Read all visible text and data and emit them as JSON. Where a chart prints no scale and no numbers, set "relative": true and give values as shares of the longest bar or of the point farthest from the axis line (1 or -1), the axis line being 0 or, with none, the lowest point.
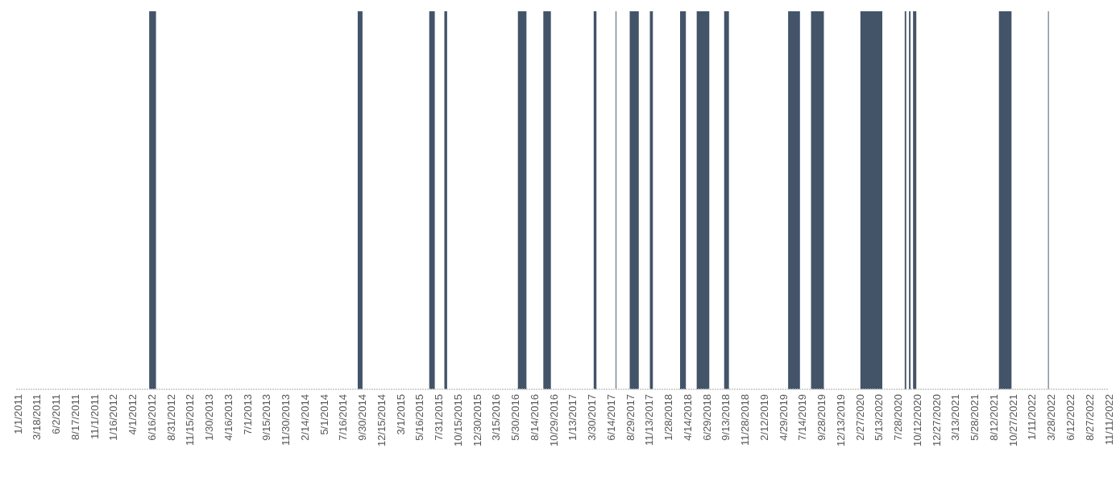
{
  "chart_data": {
    "type": "area",
    "relative": true,
    "color": "#435469",
    "grid": false,
    "x": [
      "2011-01-01",
      "2012-06-06",
      "2012-07-03",
      "2014-09-12",
      "2014-10-01",
      "2015-06-23",
      "2015-07-15",
      "2015-08-22",
      "2015-09-02",
      "2016-06-09",
      "2016-07-13",
      "2016-09-18",
      "2016-10-18",
      "2017-04-06",
      "2017-04-17",
      "2017-07-02",
      "2017-07-05",
      "2017-08-27",
      "2017-10-02",
      "2017-11-15",
      "2017-11-27",
      "2018-03-15",
      "2018-04-07",
      "2018-05-20",
      "2018-07-09",
      "2018-09-06",
      "2018-09-25",
      "2019-05-18",
      "2019-07-04",
      "2019-08-17",
      "2019-10-07",
      "2020-02-29",
      "2020-05-26",
      "2020-08-23",
      "2020-08-29",
      "2020-09-09",
      "2020-09-15",
      "2020-09-25",
      "2020-10-08",
      "2021-09-01",
      "2021-10-21",
      "2022-03-15",
      "2022-03-18"
    ],
    "values": [
      0,
      1,
      0,
      1,
      0,
      1,
      0,
      1,
      0,
      1,
      0,
      1,
      0,
      1,
      0,
      1,
      0,
      1,
      0,
      1,
      0,
      1,
      0,
      1,
      0,
      1,
      0,
      1,
      0,
      1,
      0,
      1,
      0,
      1,
      0,
      1,
      0,
      1,
      0,
      1,
      0,
      1,
      0
    ],
    "xlim": [
      "2011-01-01",
      "2022-11-11"
    ],
    "xticks": [
      {
        "value": "2011-01-01",
        "label": "1/1/2011"
      },
      {
        "value": "2011-03-18",
        "label": "3/18/2011"
      },
      {
        "value": "2011-06-02",
        "label": "6/2/2011"
      },
      {
        "value": "2011-08-17",
        "label": "8/17/2011"
      },
      {
        "value": "2011-11-01",
        "label": "11/1/2011"
      },
      {
        "value": "2012-01-16",
        "label": "1/16/2012"
      },
      {
        "value": "2012-04-01",
        "label": "4/1/2012"
      },
      {
        "value": "2012-06-16",
        "label": "6/16/2012"
      },
      {
        "value": "2012-08-31",
        "label": "8/31/2012"
      },
      {
        "value": "2012-11-15",
        "label": "11/15/2012"
      },
      {
        "value": "2013-01-30",
        "label": "1/30/2013"
      },
      {
        "value": "2013-04-16",
        "label": "4/16/2013"
      },
      {
        "value": "2013-07-01",
        "label": "7/1/2013"
      },
      {
        "value": "2013-09-15",
        "label": "9/15/2013"
      },
      {
        "value": "2013-11-30",
        "label": "11/30/2013"
      },
      {
        "value": "2014-02-14",
        "label": "2/14/2014"
      },
      {
        "value": "2014-05-01",
        "label": "5/1/2014"
      },
      {
        "value": "2014-07-16",
        "label": "7/16/2014"
      },
      {
        "value": "2014-09-30",
        "label": "9/30/2014"
      },
      {
        "value": "2014-12-15",
        "label": "12/15/2014"
      },
      {
        "value": "2015-03-01",
        "label": "3/1/2015"
      },
      {
        "value": "2015-05-16",
        "label": "5/16/2015"
      },
      {
        "value": "2015-07-31",
        "label": "7/31/2015"
      },
      {
        "value": "2015-10-15",
        "label": "10/15/2015"
      },
      {
        "value": "2015-12-30",
        "label": "12/30/2015"
      },
      {
        "value": "2016-03-15",
        "label": "3/15/2016"
      },
      {
        "value": "2016-05-30",
        "label": "5/30/2016"
      },
      {
        "value": "2016-08-14",
        "label": "8/14/2016"
      },
      {
        "value": "2016-10-29",
        "label": "10/29/2016"
      },
      {
        "value": "2017-01-13",
        "label": "1/13/2017"
      },
      {
        "value": "2017-03-30",
        "label": "3/30/2017"
      },
      {
        "value": "2017-06-14",
        "label": "6/14/2017"
      },
      {
        "value": "2017-08-29",
        "label": "8/29/2017"
      },
      {
        "value": "2017-11-13",
        "label": "11/13/2017"
      },
      {
        "value": "2018-01-28",
        "label": "1/28/2018"
      },
      {
        "value": "2018-04-14",
        "label": "4/14/2018"
      },
      {
        "value": "2018-06-29",
        "label": "6/29/2018"
      },
      {
        "value": "2018-09-13",
        "label": "9/13/2018"
      },
      {
        "value": "2018-11-28",
        "label": "11/28/2018"
      },
      {
        "value": "2019-02-12",
        "label": "2/12/2019"
      },
      {
        "value": "2019-04-29",
        "label": "4/29/2019"
      },
      {
        "value": "2019-07-14",
        "label": "7/14/2019"
      },
      {
        "value": "2019-09-28",
        "label": "9/28/2019"
      },
      {
        "value": "2019-12-13",
        "label": "12/13/2019"
      },
      {
        "value": "2020-02-27",
        "label": "2/27/2020"
      },
      {
        "value": "2020-05-13",
        "label": "5/13/2020"
      },
      {
        "value": "2020-07-28",
        "label": "7/28/2020"
      },
      {
        "value": "2020-10-12",
        "label": "10/12/2020"
      },
      {
        "value": "2020-12-27",
        "label": "12/27/2020"
      },
      {
        "value": "2021-03-13",
        "label": "3/13/2021"
      },
      {
        "value": "2021-05-28",
        "label": "5/28/2021"
      },
      {
        "value": "2021-08-12",
        "label": "8/12/2021"
      },
      {
        "value": "2021-10-27",
        "label": "10/27/2021"
      },
      {
        "value": "2022-01-11",
        "label": "1/11/2022"
      },
      {
        "value": "2022-03-28",
        "label": "3/28/2022"
      },
      {
        "value": "2022-06-12",
        "label": "6/12/2022"
      },
      {
        "value": "2022-08-27",
        "label": "8/27/2022"
      },
      {
        "value": "2022-11-11",
        "label": "11/11/2022"
      }
    ]
  }
}
